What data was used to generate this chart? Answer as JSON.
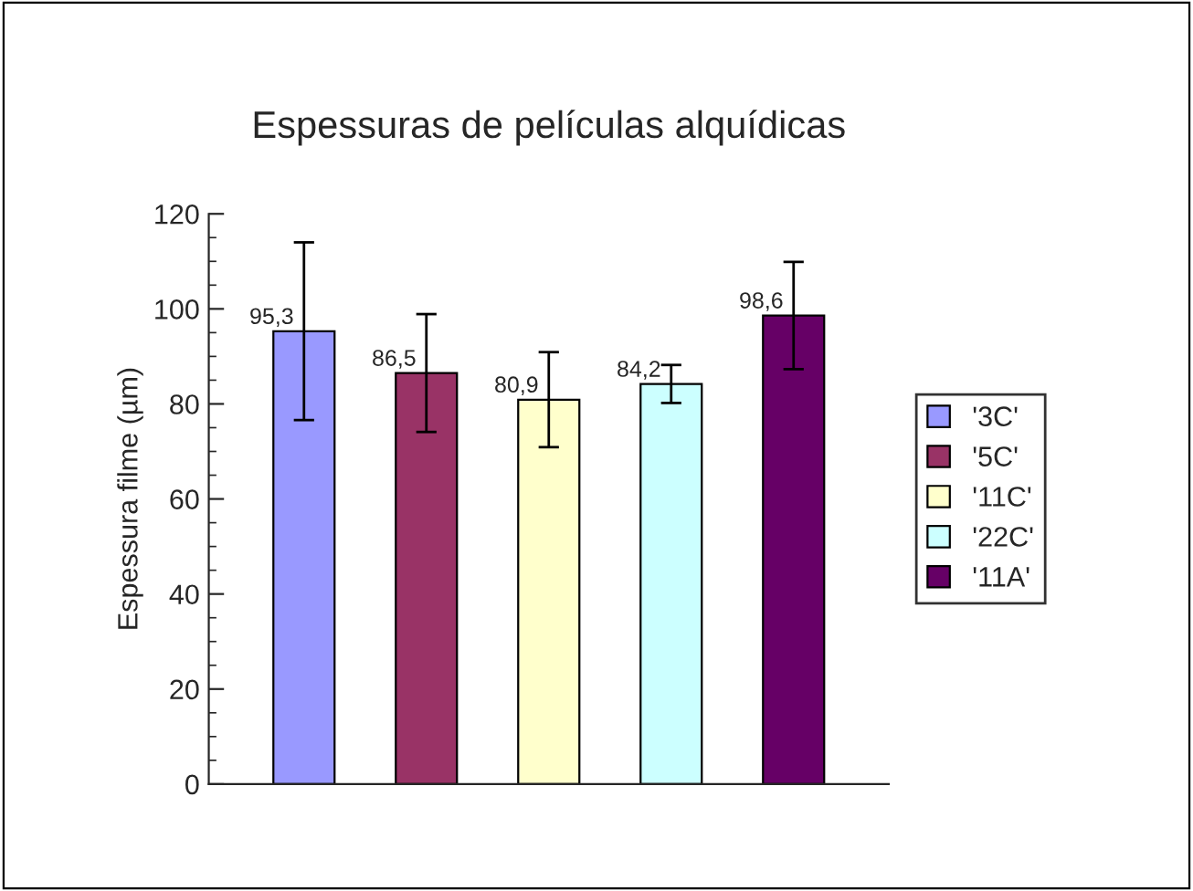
{
  "chart_data": {
    "type": "bar",
    "title": "Espessuras de películas alquídicas",
    "ylabel": "Espessura filme (µm)",
    "categories": [
      null
    ],
    "series": [
      {
        "name": "'3C'",
        "color": "#9999ff",
        "values": [
          95.3
        ],
        "errors": [
          18.7
        ],
        "value_labels": [
          "95,3"
        ]
      },
      {
        "name": "'5C'",
        "color": "#993366",
        "values": [
          86.5
        ],
        "errors": [
          12.4
        ],
        "value_labels": [
          "86,5"
        ]
      },
      {
        "name": "'11C'",
        "color": "#ffffcc",
        "values": [
          80.9
        ],
        "errors": [
          10
        ],
        "value_labels": [
          "80,9"
        ]
      },
      {
        "name": "'22C'",
        "color": "#ccffff",
        "values": [
          84.2
        ],
        "errors": [
          4
        ],
        "value_labels": [
          "84,2"
        ]
      },
      {
        "name": "'11A'",
        "color": "#660066",
        "values": [
          98.6
        ],
        "errors": [
          11.3
        ],
        "value_labels": [
          "98,6"
        ]
      }
    ],
    "ylim": [
      0,
      120
    ],
    "yticks": [
      0,
      20,
      40,
      60,
      80,
      100,
      120
    ],
    "grid": false,
    "legend": "right"
  }
}
